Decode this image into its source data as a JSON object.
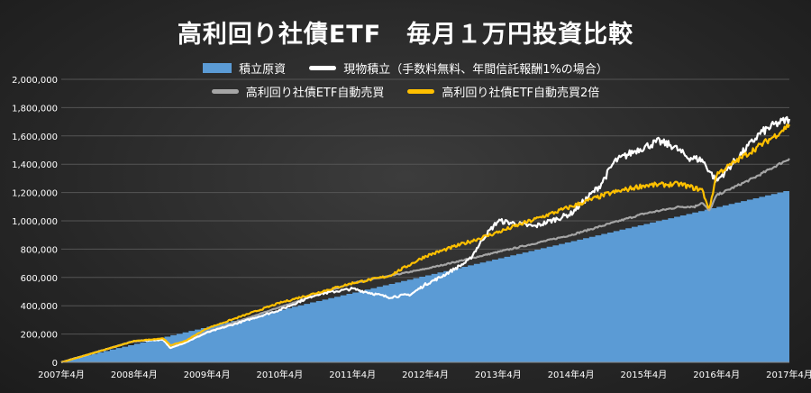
{
  "chart_data": {
    "type": "area",
    "title": "高利回り社債ETF　毎月１万円投資比較",
    "ylim": [
      0,
      2000000
    ],
    "y_ticks": [
      "0",
      "200,000",
      "400,000",
      "600,000",
      "800,000",
      "1,000,000",
      "1,200,000",
      "1,400,000",
      "1,600,000",
      "1,800,000",
      "2,000,000"
    ],
    "x_ticks": [
      "2007年4月",
      "2008年4月",
      "2009年4月",
      "2010年4月",
      "2011年4月",
      "2012年4月",
      "2013年4月",
      "2014年4月",
      "2015年4月",
      "2016年4月",
      "2017年4月"
    ],
    "grid": true,
    "legend_position": "top",
    "series": [
      {
        "name": "積立原資",
        "style": "area",
        "color": "#5b9bd5",
        "x": [
          0,
          10
        ],
        "y": [
          10000,
          1220000
        ]
      },
      {
        "name": "現物積立（手数料無料、年間信託報酬1%の場合）",
        "style": "line",
        "color": "#ffffff",
        "x": [
          0,
          1,
          1.4,
          1.5,
          1.7,
          2,
          3,
          3.5,
          4,
          4.5,
          4.8,
          5,
          5.2,
          5.6,
          5.8,
          6,
          6.5,
          7,
          7.4,
          7.6,
          7.9,
          8.2,
          8.4,
          8.6,
          8.8,
          9,
          9.3,
          9.6,
          9.8,
          10
        ],
        "y": [
          0,
          150000,
          160000,
          100000,
          140000,
          210000,
          370000,
          480000,
          520000,
          460000,
          480000,
          550000,
          600000,
          720000,
          880000,
          1000000,
          960000,
          1050000,
          1250000,
          1420000,
          1500000,
          1560000,
          1530000,
          1450000,
          1430000,
          1280000,
          1450000,
          1620000,
          1680000,
          1720000
        ]
      },
      {
        "name": "高利回り社債ETF自動売買",
        "style": "line",
        "color": "#a5a5a5",
        "x": [
          0,
          1,
          1.4,
          1.5,
          1.7,
          2,
          3,
          4,
          5,
          6,
          7,
          8,
          8.5,
          8.7,
          8.8,
          8.9,
          9,
          9.5,
          10
        ],
        "y": [
          0,
          150000,
          165000,
          120000,
          145000,
          215000,
          390000,
          560000,
          660000,
          780000,
          900000,
          1050000,
          1100000,
          1100000,
          1130000,
          1070000,
          1180000,
          1300000,
          1440000
        ]
      },
      {
        "name": "高利回り社債ETF自動売買2倍",
        "style": "line",
        "color": "#ffc000",
        "x": [
          0,
          1,
          1.4,
          1.5,
          1.7,
          2,
          3,
          4,
          4.5,
          5,
          6,
          7,
          7.5,
          8,
          8.5,
          8.7,
          8.8,
          8.9,
          9,
          9.5,
          9.8,
          10
        ],
        "y": [
          0,
          150000,
          170000,
          120000,
          150000,
          240000,
          420000,
          560000,
          610000,
          750000,
          920000,
          1100000,
          1190000,
          1250000,
          1260000,
          1230000,
          1220000,
          1080000,
          1330000,
          1500000,
          1600000,
          1680000
        ]
      }
    ]
  }
}
